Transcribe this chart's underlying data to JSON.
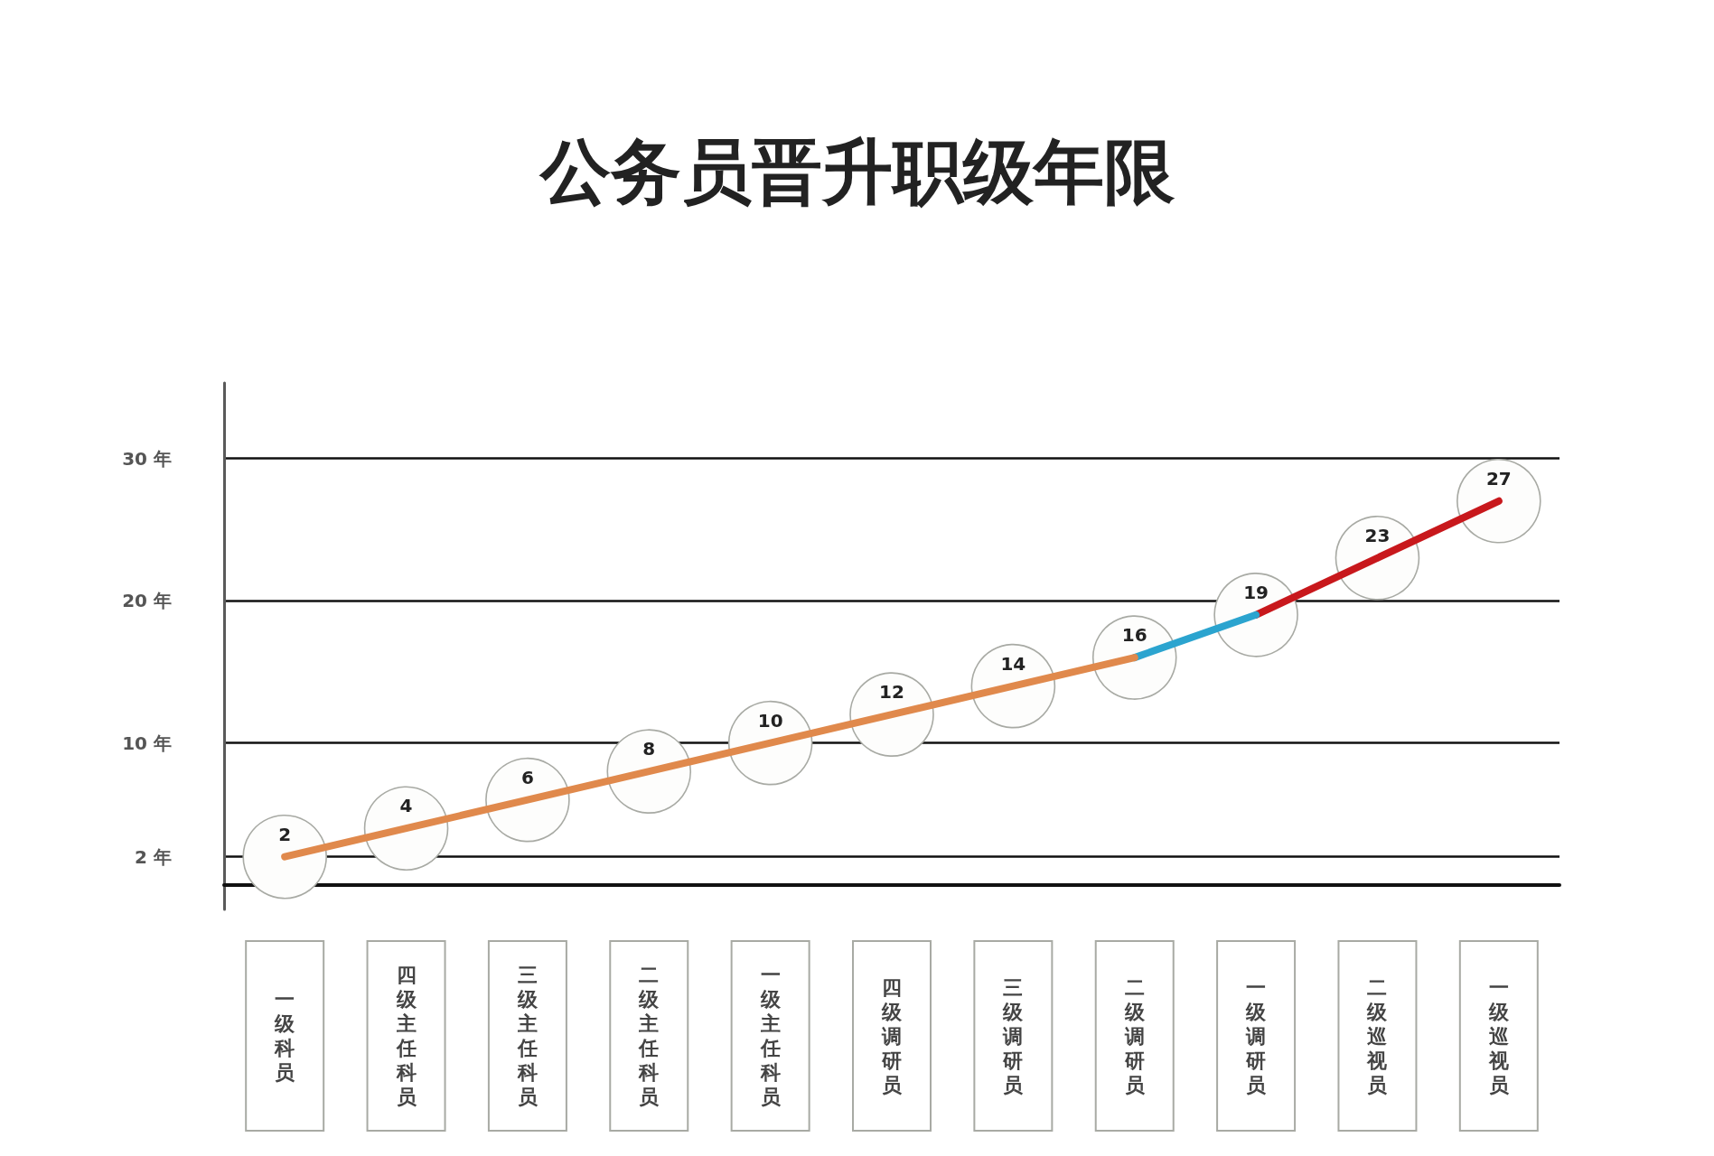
{
  "chart_data": {
    "type": "line",
    "title": "公务员晋升职级年限",
    "categories": [
      "一级科员",
      "四级主任科员",
      "三级主任科员",
      "二级主任科员",
      "一级主任科员",
      "四级调研员",
      "三级调研员",
      "二级调研员",
      "一级调研员",
      "二级巡视员",
      "一级巡视员"
    ],
    "series": [
      {
        "color": "#e0894c",
        "values": [
          2,
          4,
          6,
          8,
          10,
          12,
          14,
          16,
          null,
          null,
          null
        ],
        "value_labels": [
          "2",
          "4",
          "6",
          "8",
          "10",
          "12",
          "14",
          "16",
          null,
          null,
          null
        ]
      },
      {
        "color": "#2ba4cf",
        "values": [
          null,
          null,
          null,
          null,
          null,
          null,
          null,
          16,
          19,
          null,
          null
        ],
        "value_labels": [
          null,
          null,
          null,
          null,
          null,
          null,
          null,
          null,
          "19",
          null,
          null
        ]
      },
      {
        "color": "#c8181c",
        "values": [
          null,
          null,
          null,
          null,
          null,
          null,
          null,
          null,
          19,
          23,
          27
        ],
        "value_labels": [
          null,
          null,
          null,
          null,
          null,
          null,
          null,
          null,
          null,
          "23",
          "27"
        ]
      }
    ],
    "ylim": [
      -1.7,
      35.3
    ],
    "yticks": [
      {
        "value": 2,
        "label": "2 年"
      },
      {
        "value": 10,
        "label": "10 年"
      },
      {
        "value": 20,
        "label": "20 年"
      },
      {
        "value": 30,
        "label": "30 年"
      }
    ],
    "grid": "y",
    "line_style": "solid"
  }
}
